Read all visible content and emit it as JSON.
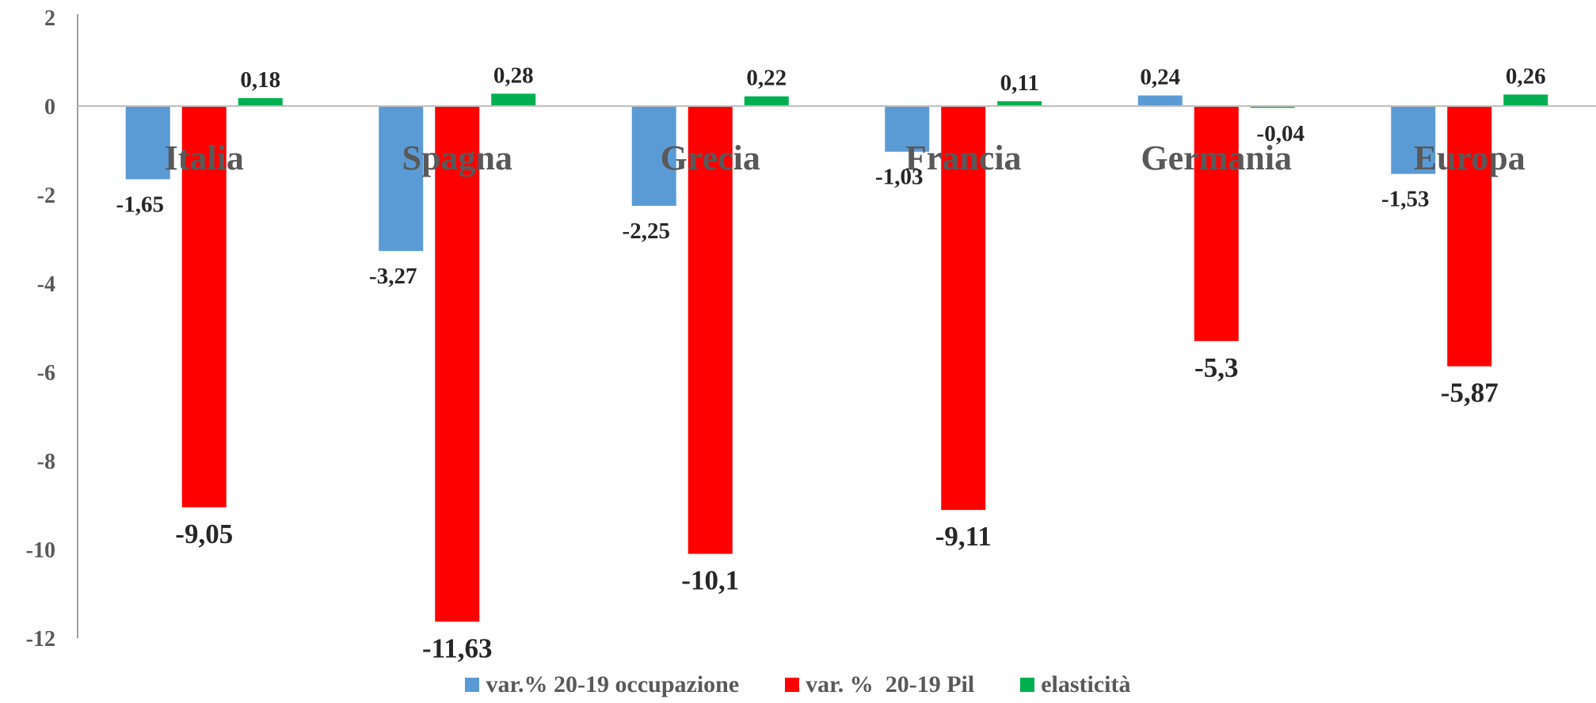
{
  "chart_data": {
    "type": "bar",
    "categories": [
      "Italia",
      "Spagna",
      "Grecia",
      "Francia",
      "Germania",
      "Europa"
    ],
    "series": [
      {
        "name": "var.% 20-19 occupazione",
        "color": "#5B9BD5",
        "values": [
          -1.65,
          -3.27,
          -2.25,
          -1.03,
          0.24,
          -1.53
        ],
        "labels": [
          "-1,65",
          "-3,27",
          "-2,25",
          "-1,03",
          "0,24",
          "-1,53"
        ]
      },
      {
        "name": "var. %  20-19 Pil",
        "color": "#FF0000",
        "values": [
          -9.05,
          -11.63,
          -10.1,
          -9.11,
          -5.3,
          -5.87
        ],
        "labels": [
          "-9,05",
          "-11,63",
          "-10,1",
          "-9,11",
          "-5,3",
          "-5,87"
        ]
      },
      {
        "name": "elasticità",
        "color": "#00B050",
        "values": [
          0.18,
          0.28,
          0.22,
          0.11,
          -0.04,
          0.26
        ],
        "labels": [
          "0,18",
          "0,28",
          "0,22",
          "0,11",
          "-0,04",
          "0,26"
        ]
      }
    ],
    "ylim": [
      -12,
      2
    ],
    "yticks": [
      2,
      0,
      -2,
      -4,
      -6,
      -8,
      -10,
      -12
    ],
    "ytick_labels": [
      "2",
      "0",
      "-2",
      "-4",
      "-6",
      "-8",
      "-10",
      "-12"
    ],
    "grid": false,
    "legend_position": "bottom"
  }
}
